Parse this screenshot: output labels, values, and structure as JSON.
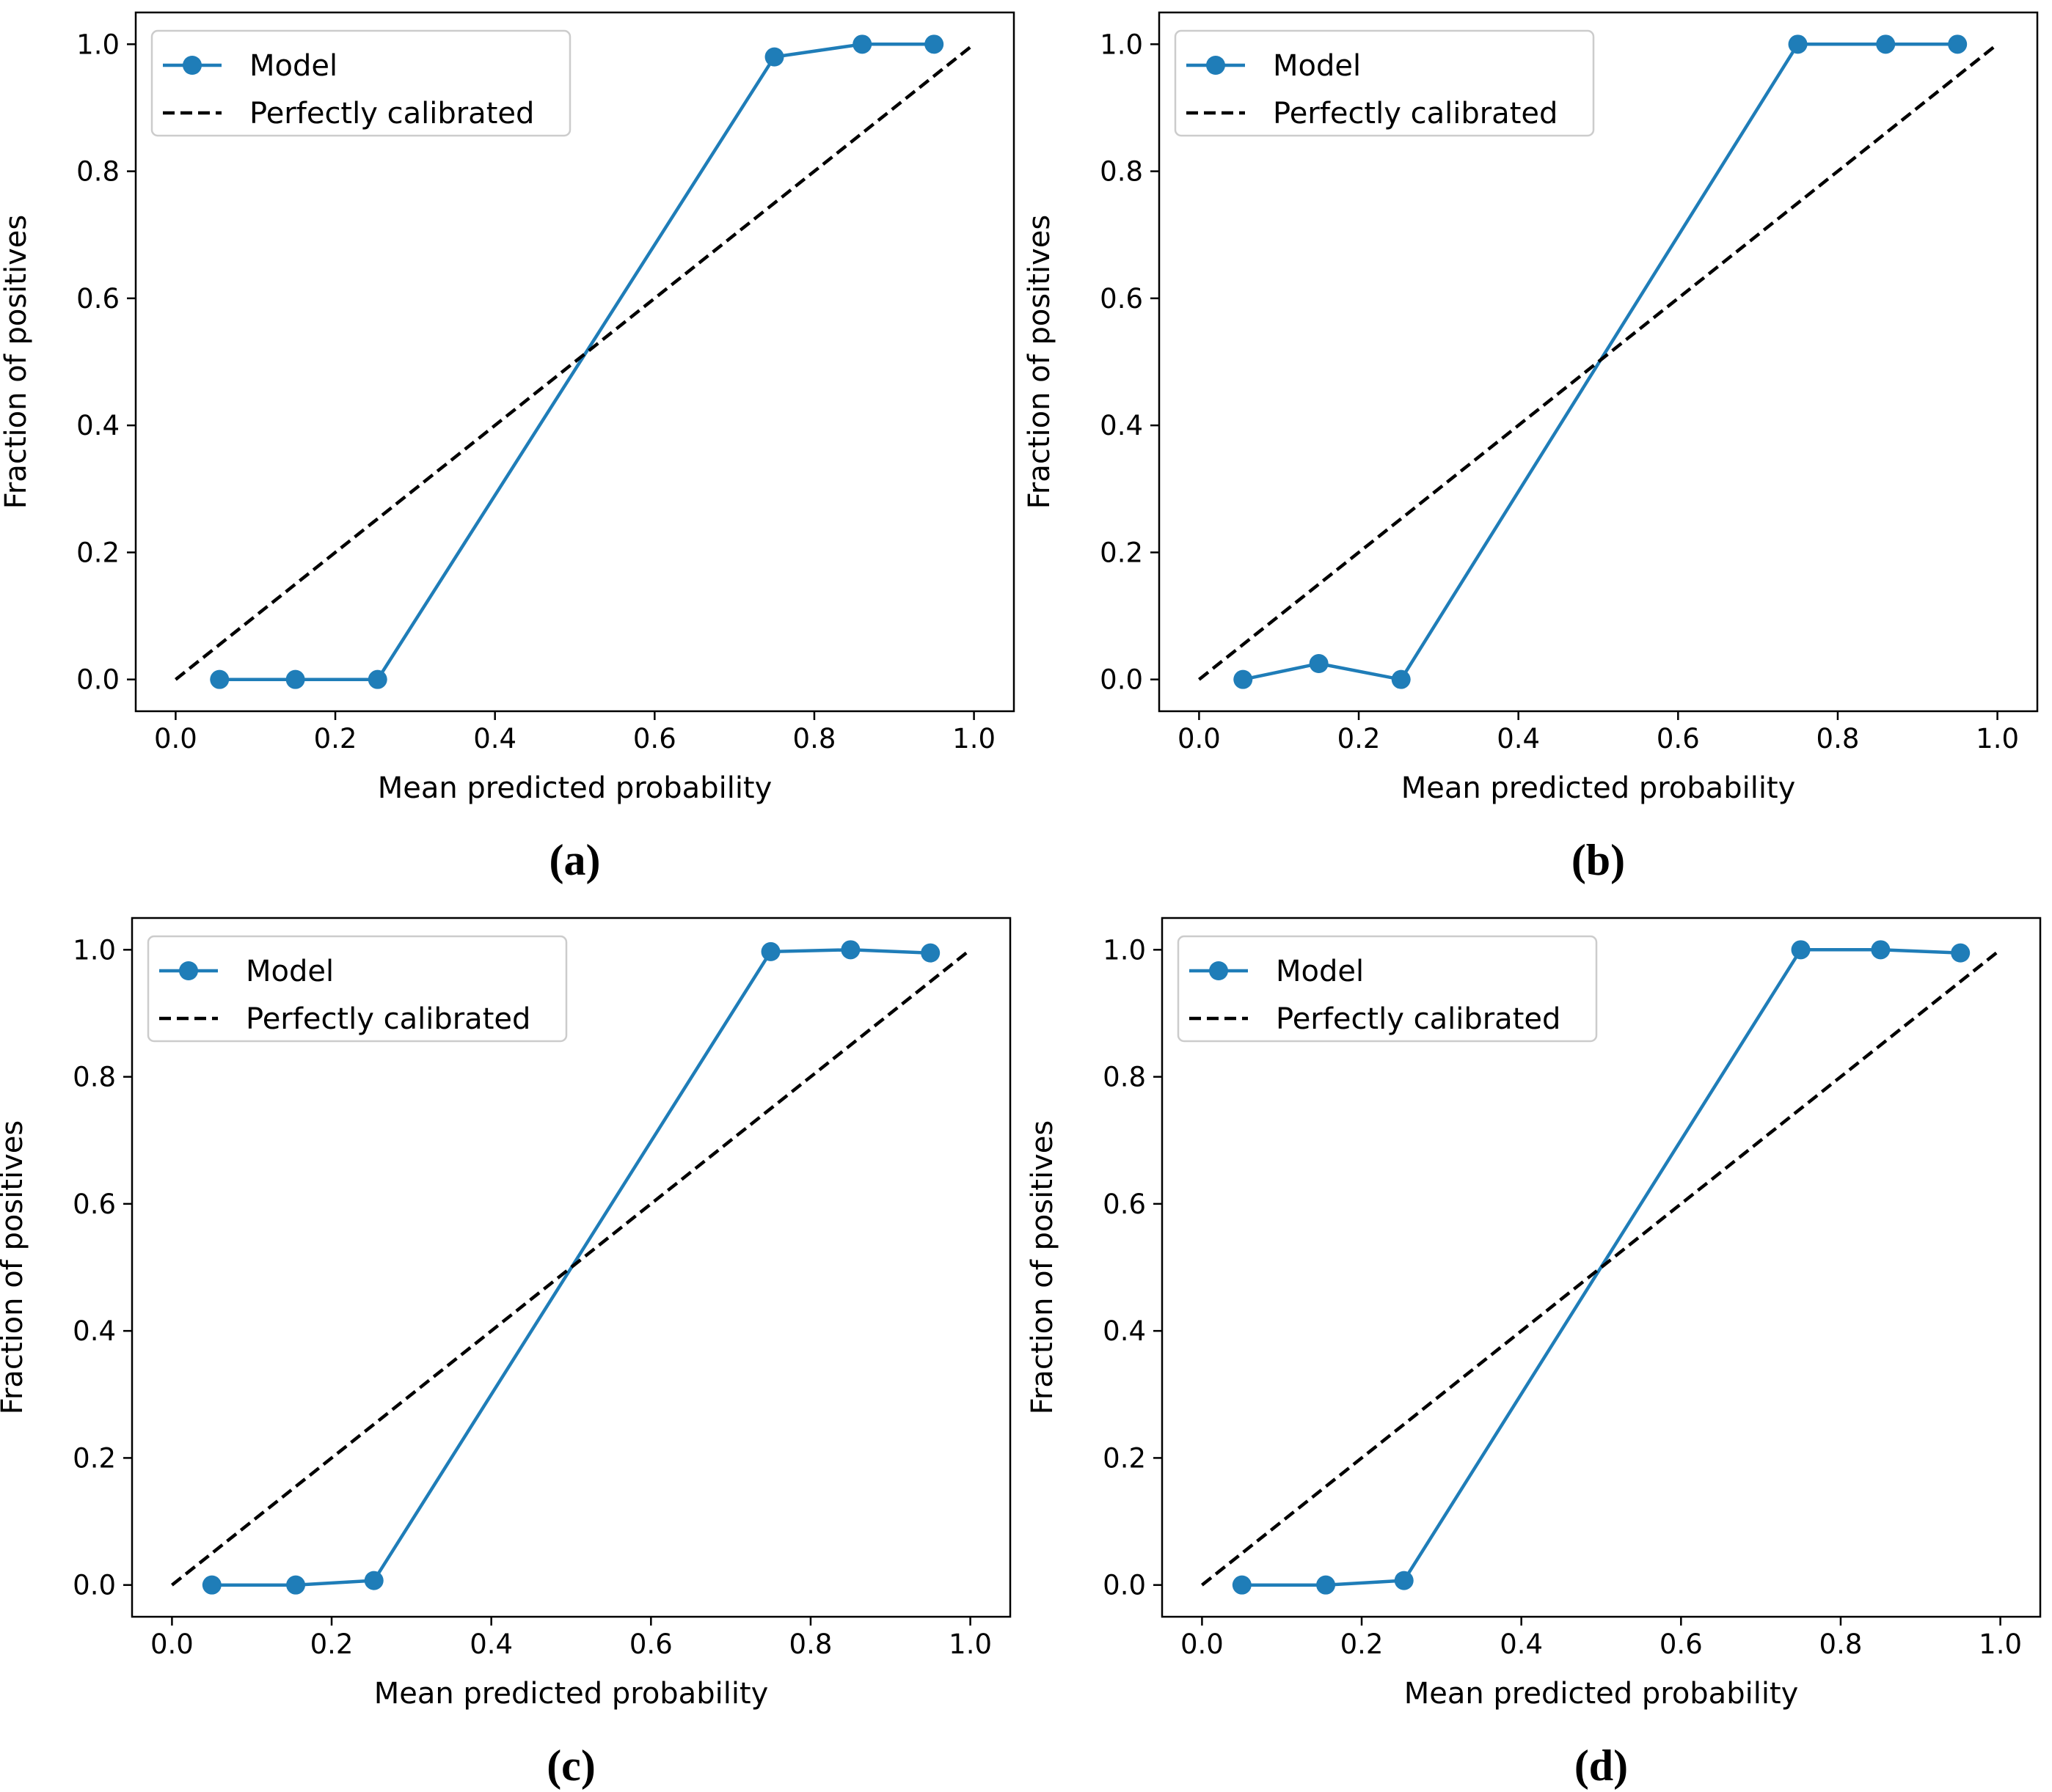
{
  "chart_data": [
    {
      "type": "line",
      "caption": "(a)",
      "title": "",
      "xlabel": "Mean predicted probability",
      "ylabel": "Fraction of positives",
      "xlim": [
        -0.05,
        1.05
      ],
      "ylim": [
        -0.05,
        1.05
      ],
      "xticks": [
        "0.0",
        "0.2",
        "0.4",
        "0.6",
        "0.8",
        "1.0"
      ],
      "yticks": [
        "0.0",
        "0.2",
        "0.4",
        "0.6",
        "0.8",
        "1.0"
      ],
      "legend_position": "top-left",
      "series": [
        {
          "name": "Model",
          "style": "line-marker",
          "color": "#1f7db8",
          "x": [
            0.055,
            0.15,
            0.253,
            0.75,
            0.86,
            0.95
          ],
          "y": [
            0.0,
            0.0,
            0.0,
            0.98,
            1.0,
            1.0
          ]
        },
        {
          "name": "Perfectly calibrated",
          "style": "dashed",
          "color": "#000000",
          "x": [
            0.0,
            1.0
          ],
          "y": [
            0.0,
            1.0
          ]
        }
      ]
    },
    {
      "type": "line",
      "caption": "(b)",
      "title": "",
      "xlabel": "Mean predicted probability",
      "ylabel": "Fraction of positives",
      "xlim": [
        -0.05,
        1.05
      ],
      "ylim": [
        -0.05,
        1.05
      ],
      "xticks": [
        "0.0",
        "0.2",
        "0.4",
        "0.6",
        "0.8",
        "1.0"
      ],
      "yticks": [
        "0.0",
        "0.2",
        "0.4",
        "0.6",
        "0.8",
        "1.0"
      ],
      "legend_position": "top-left",
      "series": [
        {
          "name": "Model",
          "style": "line-marker",
          "color": "#1f7db8",
          "x": [
            0.055,
            0.15,
            0.253,
            0.75,
            0.86,
            0.95
          ],
          "y": [
            0.0,
            0.025,
            0.0,
            1.0,
            1.0,
            1.0
          ]
        },
        {
          "name": "Perfectly calibrated",
          "style": "dashed",
          "color": "#000000",
          "x": [
            0.0,
            1.0
          ],
          "y": [
            0.0,
            1.0
          ]
        }
      ]
    },
    {
      "type": "line",
      "caption": "(c)",
      "title": "",
      "xlabel": "Mean predicted probability",
      "ylabel": "Fraction of positives",
      "xlim": [
        -0.05,
        1.05
      ],
      "ylim": [
        -0.05,
        1.05
      ],
      "xticks": [
        "0.0",
        "0.2",
        "0.4",
        "0.6",
        "0.8",
        "1.0"
      ],
      "yticks": [
        "0.0",
        "0.2",
        "0.4",
        "0.6",
        "0.8",
        "1.0"
      ],
      "legend_position": "top-left",
      "series": [
        {
          "name": "Model",
          "style": "line-marker",
          "color": "#1f7db8",
          "x": [
            0.05,
            0.155,
            0.253,
            0.75,
            0.85,
            0.95
          ],
          "y": [
            0.0,
            0.0,
            0.007,
            0.997,
            1.0,
            0.995
          ]
        },
        {
          "name": "Perfectly calibrated",
          "style": "dashed",
          "color": "#000000",
          "x": [
            0.0,
            1.0
          ],
          "y": [
            0.0,
            1.0
          ]
        }
      ]
    },
    {
      "type": "line",
      "caption": "(d)",
      "title": "",
      "xlabel": "Mean predicted probability",
      "ylabel": "Fraction of positives",
      "xlim": [
        -0.05,
        1.05
      ],
      "ylim": [
        -0.05,
        1.05
      ],
      "xticks": [
        "0.0",
        "0.2",
        "0.4",
        "0.6",
        "0.8",
        "1.0"
      ],
      "yticks": [
        "0.0",
        "0.2",
        "0.4",
        "0.6",
        "0.8",
        "1.0"
      ],
      "legend_position": "top-left",
      "series": [
        {
          "name": "Model",
          "style": "line-marker",
          "color": "#1f7db8",
          "x": [
            0.05,
            0.155,
            0.253,
            0.75,
            0.85,
            0.95
          ],
          "y": [
            0.0,
            0.0,
            0.007,
            1.0,
            1.0,
            0.995
          ]
        },
        {
          "name": "Perfectly calibrated",
          "style": "dashed",
          "color": "#000000",
          "x": [
            0.0,
            1.0
          ],
          "y": [
            0.0,
            1.0
          ]
        }
      ]
    }
  ]
}
